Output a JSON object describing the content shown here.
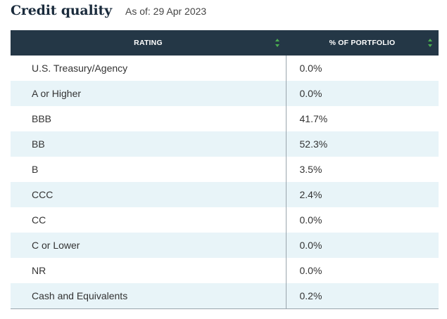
{
  "header": {
    "title": "Credit quality",
    "as_of": "As of: 29 Apr 2023"
  },
  "table": {
    "columns": [
      "RATING",
      "% OF PORTFOLIO"
    ],
    "sort_icon": "sort-up-down-icon",
    "sort_color": "#4caf50",
    "header_bg": "#243746",
    "alt_row_bg": "#e8f4f8",
    "rows": [
      {
        "rating": "U.S. Treasury/Agency",
        "pct": "0.0%"
      },
      {
        "rating": "A or Higher",
        "pct": "0.0%"
      },
      {
        "rating": "BBB",
        "pct": "41.7%"
      },
      {
        "rating": "BB",
        "pct": "52.3%"
      },
      {
        "rating": "B",
        "pct": "3.5%"
      },
      {
        "rating": "CCC",
        "pct": "2.4%"
      },
      {
        "rating": "CC",
        "pct": "0.0%"
      },
      {
        "rating": "C or Lower",
        "pct": "0.0%"
      },
      {
        "rating": "NR",
        "pct": "0.0%"
      },
      {
        "rating": "Cash and Equivalents",
        "pct": "0.2%"
      }
    ]
  }
}
